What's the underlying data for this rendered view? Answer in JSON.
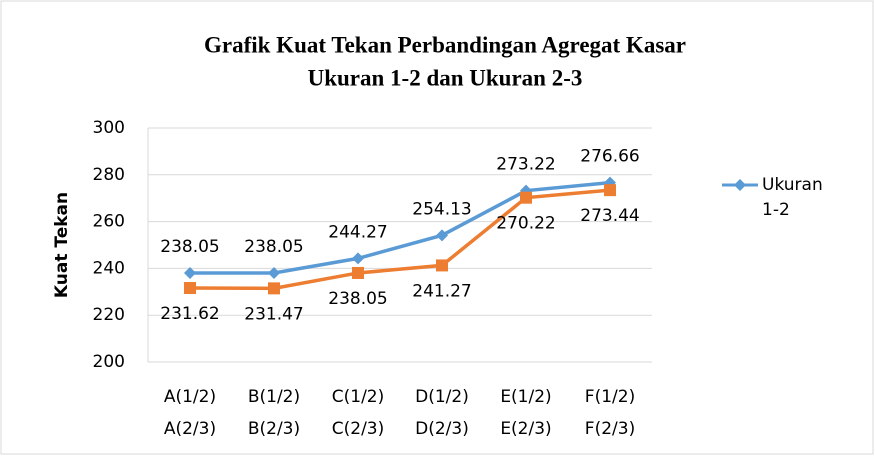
{
  "chart_data": {
    "type": "line",
    "title": [
      "Grafik Kuat Tekan Perbandingan Agregat Kasar",
      "Ukuran 1-2 dan Ukuran 2-3"
    ],
    "y_label": "Kuat Tekan",
    "categories": [
      [
        "A(1/2)",
        "A(2/3)"
      ],
      [
        "B(1/2)",
        "B(2/3)"
      ],
      [
        "C(1/2)",
        "C(2/3)"
      ],
      [
        "D(1/2)",
        "D(2/3)"
      ],
      [
        "E(1/2)",
        "E(2/3)"
      ],
      [
        "F(1/2)",
        "F(2/3)"
      ]
    ],
    "series": [
      {
        "name": "Ukuran 1-2",
        "color": "#5b9bd5",
        "marker": "diamond",
        "values": [
          238.05,
          238.05,
          244.27,
          254.13,
          273.22,
          276.66
        ]
      },
      {
        "color": "#ed7d31",
        "marker": "square",
        "values": [
          231.62,
          231.47,
          238.05,
          241.27,
          270.22,
          273.44
        ]
      }
    ],
    "ylim": [
      200,
      300
    ],
    "yticks": [
      200,
      220,
      240,
      260,
      280,
      300
    ],
    "grid": true
  }
}
